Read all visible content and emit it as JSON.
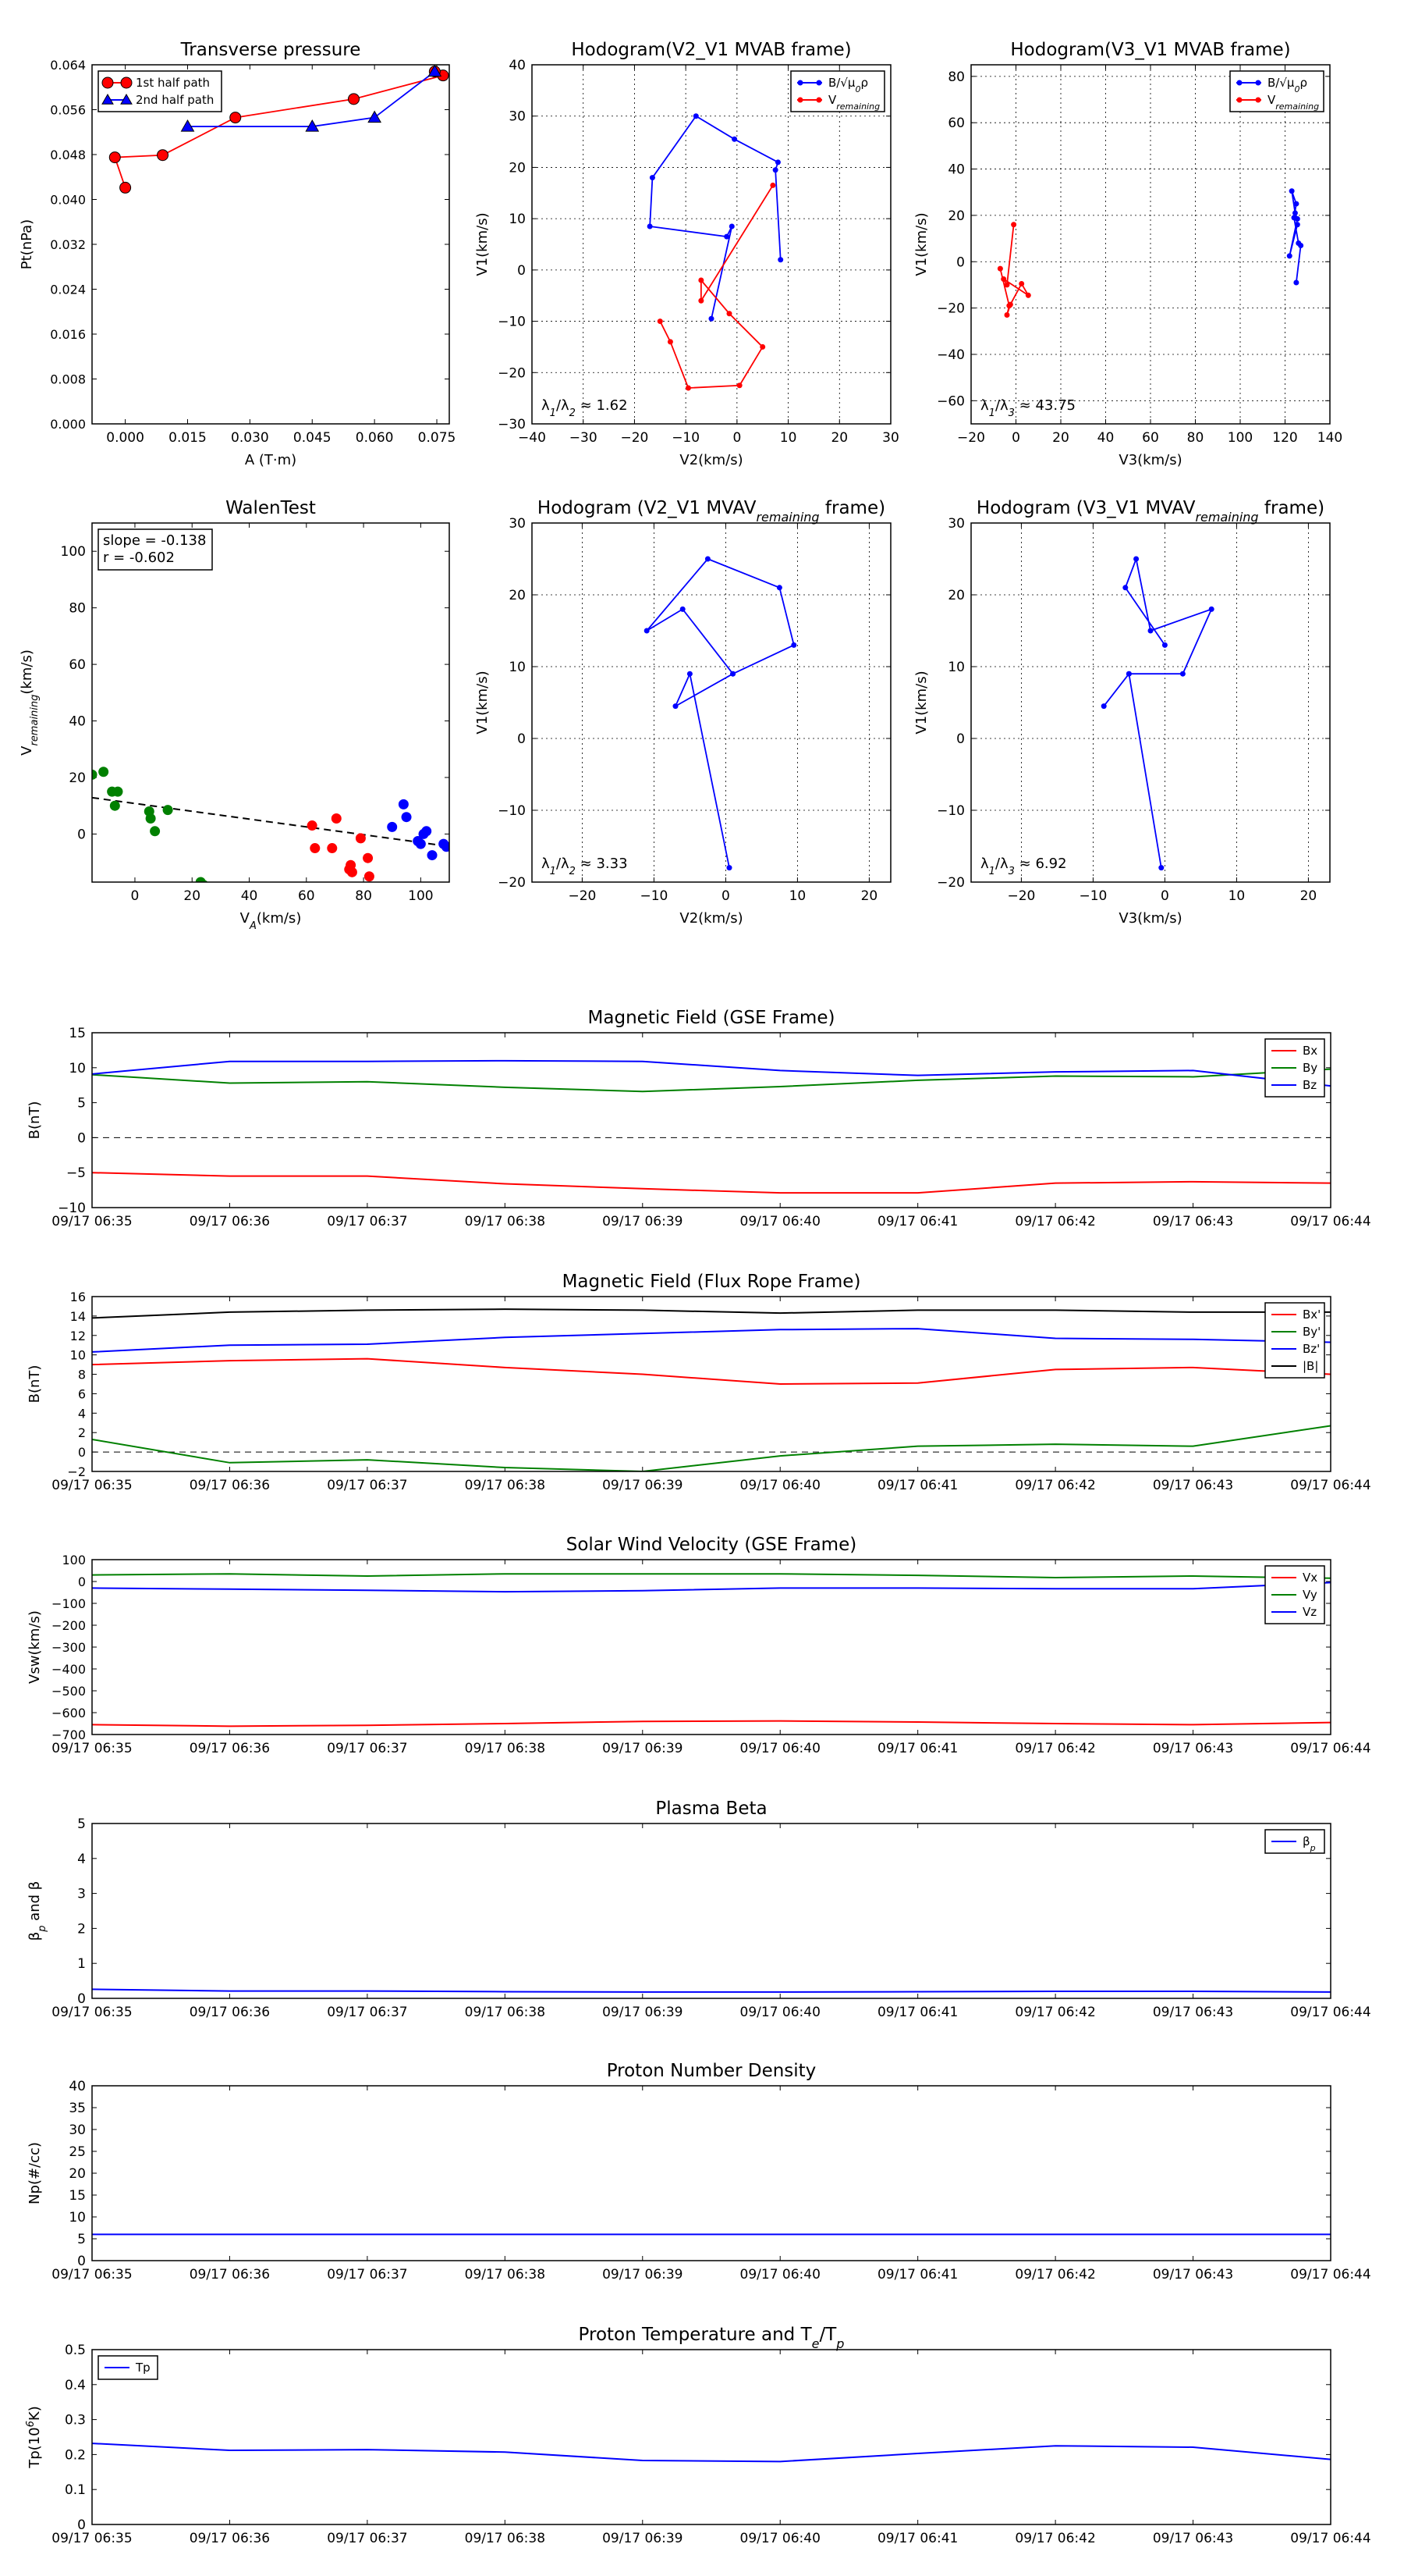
{
  "figure": {
    "background": "#ffffff"
  },
  "chart_data": [
    {
      "id": "transverse-pressure",
      "type": "scatter",
      "title": "Transverse pressure",
      "xlabel": "A (T·m)",
      "ylabel": "Pt(nPa)",
      "xlim": [
        -0.008,
        0.078
      ],
      "ylim": [
        0.0,
        0.064
      ],
      "xticks": [
        0.0,
        0.015,
        0.03,
        0.045,
        0.06,
        0.075
      ],
      "xticklabels": [
        "0.000",
        "0.015",
        "0.030",
        "0.045",
        "0.060",
        "0.075"
      ],
      "yticks": [
        0.0,
        0.008,
        0.016,
        0.024,
        0.032,
        0.04,
        0.048,
        0.056,
        0.064
      ],
      "yticklabels": [
        "0.000",
        "0.008",
        "0.016",
        "0.024",
        "0.032",
        "0.040",
        "0.048",
        "0.056",
        "0.064"
      ],
      "grid": false,
      "legend": "top-left",
      "series": [
        {
          "name": "1st half path",
          "color": "#ff0000",
          "marker": "circle",
          "x": [
            0.0,
            -0.0025,
            0.009,
            0.0265,
            0.055,
            0.0765,
            0.0745
          ],
          "y": [
            0.0421,
            0.0475,
            0.0479,
            0.0546,
            0.0579,
            0.0621,
            0.0628
          ]
        },
        {
          "name": "2nd half path",
          "color": "#0000ff",
          "marker": "triangle",
          "x": [
            0.0745,
            0.06,
            0.045,
            0.015
          ],
          "y": [
            0.0628,
            0.0546,
            0.053,
            0.053
          ]
        }
      ]
    },
    {
      "id": "hodogram-v2-v1-mvab",
      "type": "line",
      "title": "Hodogram(V2_V1 MVAB frame)",
      "xlabel": "V2(km/s)",
      "ylabel": "V1(km/s)",
      "xlim": [
        -40,
        30
      ],
      "ylim": [
        -30,
        40
      ],
      "xticks": [
        -40,
        -30,
        -20,
        -10,
        0,
        10,
        20,
        30
      ],
      "yticks": [
        -30,
        -20,
        -10,
        0,
        10,
        20,
        30,
        40
      ],
      "grid": true,
      "legend": "top-right",
      "annotation": "λ1/λ2 ≈ 1.62",
      "series": [
        {
          "name": "B/√μ0ρ",
          "color": "#0000ff",
          "marker": "dot",
          "x": [
            8.5,
            7.5,
            8.0,
            -0.5,
            -8.0,
            -16.5,
            -17.0,
            -2.0,
            -1.0,
            -5.0
          ],
          "y": [
            2.0,
            19.5,
            21.0,
            25.5,
            30.0,
            18.0,
            8.5,
            6.5,
            8.5,
            -9.5
          ]
        },
        {
          "name": "Vremaining",
          "color": "#ff0000",
          "marker": "dot",
          "x": [
            7.0,
            -7.0,
            -7.0,
            -1.5,
            5.0,
            0.5,
            -9.5,
            -13.0,
            -15.0
          ],
          "y": [
            16.5,
            -6.0,
            -2.0,
            -8.5,
            -15.0,
            -22.5,
            -23.0,
            -14.0,
            -10.0
          ]
        }
      ]
    },
    {
      "id": "hodogram-v3-v1-mvab",
      "type": "line",
      "title": "Hodogram(V3_V1 MVAB frame)",
      "xlabel": "V3(km/s)",
      "ylabel": "V1(km/s)",
      "xlim": [
        -20,
        140
      ],
      "ylim": [
        -70,
        85
      ],
      "xticks": [
        -20,
        0,
        20,
        40,
        60,
        80,
        100,
        120,
        140
      ],
      "yticks": [
        -60,
        -40,
        -20,
        0,
        20,
        40,
        60,
        80
      ],
      "grid": true,
      "legend": "top-right",
      "annotation": "λ1/λ3 ≈ 43.75",
      "series": [
        {
          "name": "B/√μ0ρ",
          "color": "#0000ff",
          "marker": "dot",
          "x": [
            125.0,
            127.0,
            126.0,
            124.0,
            125.0,
            123.0,
            124.5,
            125.5,
            122.0,
            125.5
          ],
          "y": [
            -9.0,
            7.0,
            8.0,
            19.0,
            25.0,
            30.5,
            21.0,
            18.5,
            2.5,
            16.0
          ]
        },
        {
          "name": "Vremaining",
          "color": "#ff0000",
          "marker": "dot",
          "x": [
            -1.0,
            -4.0,
            -5.5,
            5.5,
            2.5,
            -2.5,
            -4.0,
            -3.0,
            -7.0
          ],
          "y": [
            16.0,
            -10.0,
            -7.5,
            -14.5,
            -9.5,
            -18.5,
            -23.0,
            -19.0,
            -3.0
          ]
        }
      ]
    },
    {
      "id": "walen-test",
      "type": "scatter",
      "title": "WalenTest",
      "xlabel": "V A(km/s)",
      "ylabel": "Vremaining(km/s)",
      "xlim": [
        -15,
        110
      ],
      "ylim": [
        -17,
        110
      ],
      "xticks": [
        0,
        20,
        40,
        60,
        80,
        100
      ],
      "yticks": [
        0,
        20,
        40,
        60,
        80,
        100
      ],
      "grid": false,
      "annotation_lines": [
        "slope = -0.138",
        "r = -0.602"
      ],
      "fit_line": {
        "slope": -0.138,
        "intercept": 10.8,
        "color": "#000000",
        "style": "dashed"
      },
      "series": [
        {
          "color": "#008000",
          "x": [
            -15.0,
            -11.0,
            -8.0,
            -6.0,
            -7.0,
            5.0,
            5.5,
            7.0,
            11.5,
            23.0,
            24.0
          ],
          "y": [
            21.0,
            22.0,
            15.0,
            15.0,
            10.0,
            8.0,
            5.5,
            1.0,
            8.5,
            -17.0,
            -18.0
          ]
        },
        {
          "color": "#ff0000",
          "x": [
            62.0,
            63.0,
            69.0,
            70.5,
            75.0,
            75.5,
            76.0,
            79.0,
            81.5,
            82.0
          ],
          "y": [
            3.0,
            -5.0,
            -5.0,
            5.5,
            -12.5,
            -11.0,
            -13.5,
            -1.5,
            -8.5,
            -15.0
          ]
        },
        {
          "color": "#0000ff",
          "x": [
            90.0,
            94.0,
            95.0,
            99.0,
            100.0,
            101.0,
            102.0,
            104.0,
            108.0,
            109.0
          ],
          "y": [
            2.5,
            10.5,
            6.0,
            -2.5,
            -3.5,
            0.0,
            1.0,
            -7.5,
            -3.5,
            -4.5
          ]
        }
      ]
    },
    {
      "id": "hodogram-v2-v1-mvav",
      "type": "line",
      "title": "Hodogram (V2_V1 MVAVremaining frame)",
      "xlabel": "V2(km/s)",
      "ylabel": "V1(km/s)",
      "xlim": [
        -27,
        23
      ],
      "ylim": [
        -20,
        30
      ],
      "xticks": [
        -20,
        -10,
        0,
        10,
        20
      ],
      "yticks": [
        -20,
        -10,
        0,
        10,
        20,
        30
      ],
      "grid": true,
      "annotation": "λ1/λ2 ≈ 3.33",
      "series": [
        {
          "color": "#0000ff",
          "marker": "dot",
          "x": [
            0.5,
            -5.0,
            -7.0,
            1.0,
            9.5,
            7.5,
            -2.5,
            -11.0,
            -6.0,
            1.0
          ],
          "y": [
            -18.0,
            9.0,
            4.5,
            9.0,
            13.0,
            21.0,
            25.0,
            15.0,
            18.0,
            9.0
          ]
        }
      ]
    },
    {
      "id": "hodogram-v3-v1-mvav",
      "type": "line",
      "title": "Hodogram (V3_V1 MVAVremaining frame)",
      "xlabel": "V3(km/s)",
      "ylabel": "V1(km/s)",
      "xlim": [
        -27,
        23
      ],
      "ylim": [
        -20,
        30
      ],
      "xticks": [
        -20,
        -10,
        0,
        10,
        20
      ],
      "yticks": [
        -20,
        -10,
        0,
        10,
        20,
        30
      ],
      "grid": true,
      "annotation": "λ1/λ3 ≈ 6.92",
      "series": [
        {
          "color": "#0000ff",
          "marker": "dot",
          "x": [
            -0.5,
            -5.0,
            -8.5,
            -5.0,
            2.5,
            6.5,
            -2.0,
            -4.0,
            -5.5,
            0.0
          ],
          "y": [
            -18.0,
            9.0,
            4.5,
            9.0,
            9.0,
            18.0,
            15.0,
            25.0,
            21.0,
            13.0
          ]
        }
      ]
    },
    {
      "id": "magnetic-field-gse",
      "type": "line",
      "title": "Magnetic Field (GSE Frame)",
      "ylabel": "B(nT)",
      "xticklabels": [
        "09/17 06:35",
        "09/17 06:36",
        "09/17 06:37",
        "09/17 06:38",
        "09/17 06:39",
        "09/17 06:40",
        "09/17 06:41",
        "09/17 06:42",
        "09/17 06:43",
        "09/17 06:44"
      ],
      "ylim": [
        -10,
        15
      ],
      "yticks": [
        -10,
        -5,
        0,
        5,
        10,
        15
      ],
      "zero_line": true,
      "legend": "top-right",
      "series": [
        {
          "name": "Bx",
          "color": "#ff0000",
          "values": [
            -5.0,
            -5.5,
            -5.5,
            -6.6,
            -7.3,
            -7.9,
            -7.9,
            -6.5,
            -6.3,
            -6.5
          ]
        },
        {
          "name": "By",
          "color": "#008000",
          "values": [
            9.0,
            7.8,
            8.0,
            7.2,
            6.6,
            7.3,
            8.2,
            8.8,
            8.7,
            9.8
          ]
        },
        {
          "name": "Bz",
          "color": "#0000ff",
          "values": [
            9.1,
            10.9,
            10.9,
            11.0,
            10.9,
            9.6,
            8.9,
            9.4,
            9.6,
            7.4
          ]
        }
      ]
    },
    {
      "id": "magnetic-field-flux-rope",
      "type": "line",
      "title": "Magnetic Field (Flux Rope Frame)",
      "ylabel": "B(nT)",
      "xticklabels": [
        "09/17 06:35",
        "09/17 06:36",
        "09/17 06:37",
        "09/17 06:38",
        "09/17 06:39",
        "09/17 06:40",
        "09/17 06:41",
        "09/17 06:42",
        "09/17 06:43",
        "09/17 06:44"
      ],
      "ylim": [
        -2,
        16
      ],
      "yticks": [
        -2,
        0,
        2,
        4,
        6,
        8,
        10,
        12,
        14,
        16
      ],
      "zero_line": true,
      "legend": "top-right",
      "series": [
        {
          "name": "Bx'",
          "color": "#ff0000",
          "values": [
            9.0,
            9.4,
            9.6,
            8.7,
            8.0,
            7.0,
            7.1,
            8.5,
            8.7,
            8.0
          ]
        },
        {
          "name": "By'",
          "color": "#008000",
          "values": [
            1.3,
            -1.1,
            -0.8,
            -1.6,
            -2.0,
            -0.4,
            0.6,
            0.8,
            0.6,
            2.7
          ]
        },
        {
          "name": "Bz'",
          "color": "#0000ff",
          "values": [
            10.3,
            11.0,
            11.1,
            11.8,
            12.2,
            12.6,
            12.7,
            11.7,
            11.6,
            11.3
          ]
        },
        {
          "name": "|B|",
          "color": "#000000",
          "values": [
            13.8,
            14.4,
            14.6,
            14.7,
            14.6,
            14.3,
            14.6,
            14.6,
            14.4,
            14.4
          ]
        }
      ]
    },
    {
      "id": "solar-wind-velocity",
      "type": "line",
      "title": "Solar Wind Velocity (GSE Frame)",
      "ylabel": "Vsw(km/s)",
      "xticklabels": [
        "09/17 06:35",
        "09/17 06:36",
        "09/17 06:37",
        "09/17 06:38",
        "09/17 06:39",
        "09/17 06:40",
        "09/17 06:41",
        "09/17 06:42",
        "09/17 06:43",
        "09/17 06:44"
      ],
      "ylim": [
        -700,
        100
      ],
      "yticks": [
        -700,
        -600,
        -500,
        -400,
        -300,
        -200,
        -100,
        0,
        100
      ],
      "legend": "top-right",
      "series": [
        {
          "name": "Vx",
          "color": "#ff0000",
          "values": [
            -655,
            -662,
            -658,
            -650,
            -640,
            -638,
            -643,
            -650,
            -655,
            -645
          ]
        },
        {
          "name": "Vy",
          "color": "#008000",
          "values": [
            30,
            35,
            25,
            35,
            35,
            35,
            28,
            18,
            25,
            15
          ]
        },
        {
          "name": "Vz",
          "color": "#0000ff",
          "values": [
            -30,
            -35,
            -40,
            -47,
            -42,
            -30,
            -30,
            -33,
            -33,
            -5
          ]
        }
      ]
    },
    {
      "id": "plasma-beta",
      "type": "line",
      "title": "Plasma Beta",
      "ylabel": "βp and β",
      "xticklabels": [
        "09/17 06:35",
        "09/17 06:36",
        "09/17 06:37",
        "09/17 06:38",
        "09/17 06:39",
        "09/17 06:40",
        "09/17 06:41",
        "09/17 06:42",
        "09/17 06:43",
        "09/17 06:44"
      ],
      "ylim": [
        0,
        5
      ],
      "yticks": [
        0,
        1,
        2,
        3,
        4,
        5
      ],
      "legend": "top-right",
      "series": [
        {
          "name": "βp",
          "color": "#0000ff",
          "values": [
            0.26,
            0.21,
            0.21,
            0.19,
            0.18,
            0.18,
            0.19,
            0.2,
            0.2,
            0.18
          ]
        }
      ]
    },
    {
      "id": "proton-number-density",
      "type": "line",
      "title": "Proton Number Density",
      "ylabel": "Np(#/cc)",
      "xticklabels": [
        "09/17 06:35",
        "09/17 06:36",
        "09/17 06:37",
        "09/17 06:38",
        "09/17 06:39",
        "09/17 06:40",
        "09/17 06:41",
        "09/17 06:42",
        "09/17 06:43",
        "09/17 06:44"
      ],
      "ylim": [
        0,
        40
      ],
      "yticks": [
        0,
        5,
        10,
        15,
        20,
        25,
        30,
        35,
        40
      ],
      "series": [
        {
          "color": "#0000ff",
          "values": [
            6.0,
            6.0,
            6.0,
            6.0,
            6.0,
            6.0,
            6.0,
            6.0,
            6.0,
            6.0
          ]
        }
      ]
    },
    {
      "id": "proton-temperature",
      "type": "line",
      "title": "Proton Temperature and Te/Tp",
      "ylabel": "Tp(10^6 K)",
      "xticklabels": [
        "09/17 06:35",
        "09/17 06:36",
        "09/17 06:37",
        "09/17 06:38",
        "09/17 06:39",
        "09/17 06:40",
        "09/17 06:41",
        "09/17 06:42",
        "09/17 06:43",
        "09/17 06:44"
      ],
      "ylim": [
        0,
        0.5
      ],
      "yticks": [
        0.0,
        0.1,
        0.2,
        0.3,
        0.4,
        0.5
      ],
      "legend": "top-left",
      "series": [
        {
          "name": "Tp",
          "color": "#0000ff",
          "values": [
            0.232,
            0.212,
            0.214,
            0.207,
            0.183,
            0.18,
            0.203,
            0.225,
            0.221,
            0.186
          ]
        }
      ]
    }
  ]
}
